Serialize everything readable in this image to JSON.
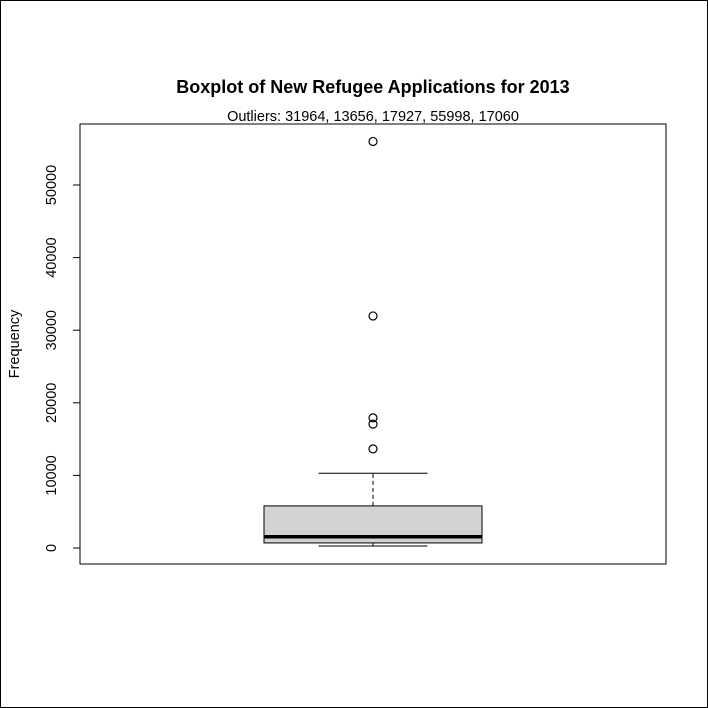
{
  "chart_data": {
    "type": "box",
    "title": "Boxplot of New Refugee Applications for 2013",
    "subtitle": "Outliers:  31964, 13656, 17927, 55998, 17060",
    "xlabel": "",
    "ylabel": "Frequency",
    "ylim": [
      -2200,
      58400
    ],
    "yticks": [
      0,
      10000,
      20000,
      30000,
      40000,
      50000
    ],
    "ytick_labels": [
      "0",
      "10000",
      "20000",
      "30000",
      "40000",
      "50000"
    ],
    "box": {
      "whisker_low": 280,
      "q1": 700,
      "median": 1550,
      "q3": 5800,
      "whisker_high": 10300
    },
    "outliers": [
      31964,
      13656,
      17927,
      55998,
      17060
    ],
    "colors": {
      "box_fill": "#d3d3d3",
      "line": "#000000",
      "background": "#ffffff"
    },
    "grid": false,
    "legend": "none"
  }
}
